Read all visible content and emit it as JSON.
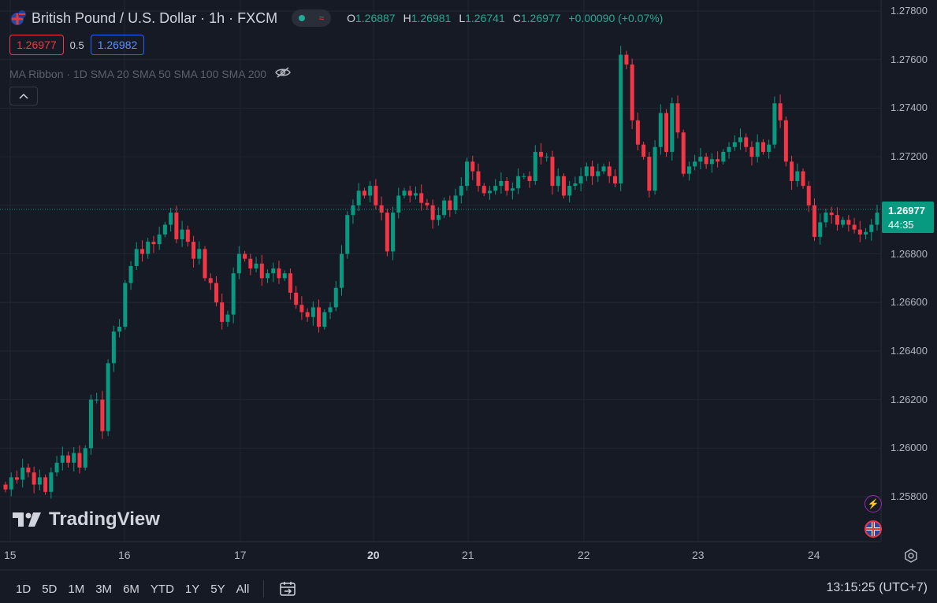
{
  "header": {
    "title": "British Pound / U.S. Dollar · 1h · FXCM",
    "ohlc": [
      {
        "k": "O",
        "v": "1.26887"
      },
      {
        "k": "H",
        "v": "1.26981"
      },
      {
        "k": "L",
        "v": "1.26741"
      },
      {
        "k": "C",
        "v": "1.26977"
      }
    ],
    "change": "+0.00090 (+0.07%)",
    "sell_price": "1.26977",
    "spread": "0.5",
    "buy_price": "1.26982",
    "indicator": "MA Ribbon · 1D SMA 20 SMA 50 SMA 100 SMA 200"
  },
  "colors": {
    "background": "#161a25",
    "up": "#089981",
    "down": "#f23645",
    "grid": "#232632",
    "text": "#b2b5be"
  },
  "chart_data": {
    "type": "candlestick",
    "symbol": "British Pound / U.S. Dollar",
    "interval": "1h",
    "y_ticks": [
      "1.27800",
      "1.27600",
      "1.27400",
      "1.27200",
      "1.27000",
      "1.26800",
      "1.26600",
      "1.26400",
      "1.26200",
      "1.26000",
      "1.25800"
    ],
    "ylim": [
      1.2555,
      1.2785
    ],
    "x_ticks": [
      {
        "label": "15",
        "bold": false
      },
      {
        "label": "16",
        "bold": false
      },
      {
        "label": "17",
        "bold": false
      },
      {
        "label": "20",
        "bold": true
      },
      {
        "label": "21",
        "bold": false
      },
      {
        "label": "22",
        "bold": false
      },
      {
        "label": "23",
        "bold": false
      },
      {
        "label": "24",
        "bold": false
      }
    ],
    "last_price": 1.26977,
    "last_price_label": "1.26977",
    "countdown": "44:35",
    "closes": [
      1.2583,
      1.2588,
      1.2587,
      1.2592,
      1.259,
      1.2585,
      1.2588,
      1.2582,
      1.259,
      1.2594,
      1.2597,
      1.2594,
      1.2598,
      1.2592,
      1.26,
      1.262,
      1.262,
      1.2607,
      1.2635,
      1.2648,
      1.265,
      1.2668,
      1.2675,
      1.2682,
      1.268,
      1.2685,
      1.2684,
      1.2688,
      1.2692,
      1.2697,
      1.2686,
      1.269,
      1.2685,
      1.2678,
      1.2682,
      1.267,
      1.2668,
      1.266,
      1.2652,
      1.2655,
      1.2672,
      1.268,
      1.2678,
      1.2674,
      1.2676,
      1.267,
      1.2672,
      1.2674,
      1.267,
      1.2672,
      1.2664,
      1.2659,
      1.2656,
      1.2654,
      1.2658,
      1.265,
      1.2656,
      1.2658,
      1.2666,
      1.268,
      1.2696,
      1.27,
      1.2706,
      1.2704,
      1.2708,
      1.27,
      1.2697,
      1.2681,
      1.2697,
      1.2704,
      1.2706,
      1.2704,
      1.2705,
      1.2701,
      1.27,
      1.2694,
      1.2696,
      1.2702,
      1.2698,
      1.2704,
      1.2708,
      1.2718,
      1.2714,
      1.2708,
      1.2705,
      1.2706,
      1.2708,
      1.271,
      1.2706,
      1.2707,
      1.2712,
      1.2712,
      1.271,
      1.2722,
      1.272,
      1.272,
      1.2708,
      1.2712,
      1.2704,
      1.2708,
      1.2709,
      1.2712,
      1.2716,
      1.2712,
      1.2714,
      1.2716,
      1.2712,
      1.2709,
      1.2762,
      1.2758,
      1.2735,
      1.2725,
      1.272,
      1.2706,
      1.2724,
      1.2738,
      1.2722,
      1.2742,
      1.273,
      1.2713,
      1.2716,
      1.2718,
      1.272,
      1.2717,
      1.2719,
      1.2718,
      1.2722,
      1.2724,
      1.2726,
      1.2728,
      1.2724,
      1.272,
      1.2726,
      1.2722,
      1.2725,
      1.2742,
      1.2735,
      1.2718,
      1.271,
      1.2714,
      1.2708,
      1.27,
      1.2687,
      1.2693,
      1.2697,
      1.2696,
      1.2692,
      1.2694,
      1.2692,
      1.269,
      1.2688,
      1.2689,
      1.2692,
      1.2697
    ]
  },
  "side_icons": [
    {
      "name": "bolt-icon"
    },
    {
      "name": "gbp-flag-icon"
    }
  ],
  "branding": {
    "logo_text": "TradingView"
  },
  "toolbar": {
    "ranges": [
      "1D",
      "5D",
      "1M",
      "3M",
      "6M",
      "YTD",
      "1Y",
      "5Y",
      "All"
    ],
    "clock": "13:15:25 (UTC+7)"
  }
}
